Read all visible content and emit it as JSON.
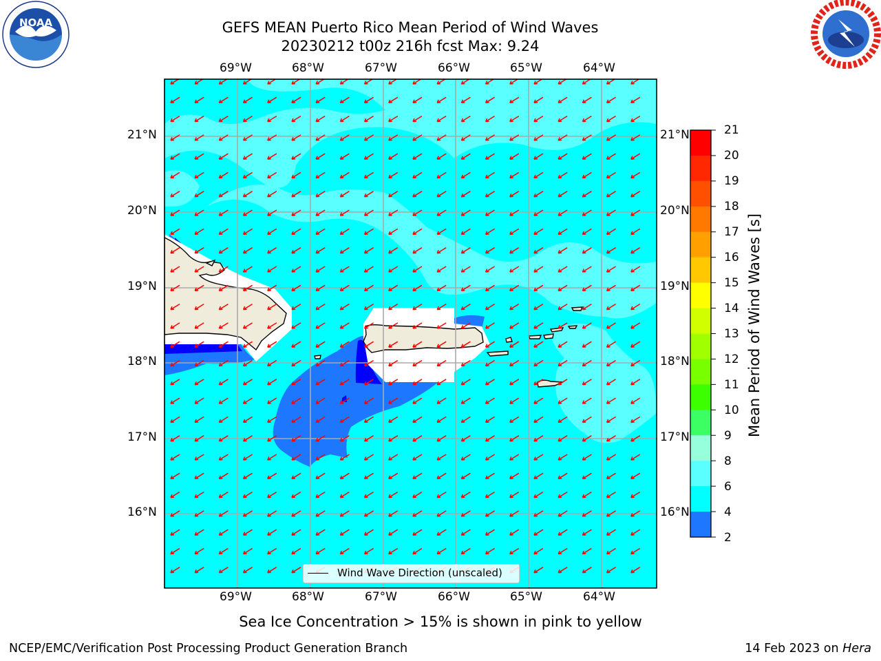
{
  "header": {
    "title_line1": "GEFS MEAN Puerto Rico Mean Period of Wind Waves",
    "title_line2": "20230212 t00z 216h fcst   Max: 9.24"
  },
  "logos": {
    "left": "NOAA",
    "left_ring_text": "NATIONAL OCEANIC AND ATMOSPHERIC ADMINISTRATION · U.S. DEPARTMENT OF COMMERCE",
    "right_ring_text": "NATIONAL WEATHER SERVICE"
  },
  "map": {
    "lon_ticks": [
      "69°W",
      "68°W",
      "67°W",
      "66°W",
      "65°W",
      "64°W"
    ],
    "lat_ticks": [
      "21°N",
      "20°N",
      "19°N",
      "18°N",
      "17°N",
      "16°N"
    ],
    "legend_label": "Wind Wave Direction (unscaled)",
    "colors": {
      "background_6_8": "#00ffff",
      "band_8_9": "#5affff",
      "band_4_6": "#1e78ff",
      "band_2_4": "#0000ff",
      "land": "#efecdc",
      "arrow": "#ff0000"
    }
  },
  "colorbar": {
    "title": "Mean Period of Wind Waves [s]",
    "labels": [
      "21",
      "20",
      "19",
      "18",
      "17",
      "16",
      "15",
      "14",
      "13",
      "12",
      "11",
      "10",
      "9",
      "8",
      "6",
      "4",
      "2"
    ],
    "colors": [
      "#ff0000",
      "#ff2800",
      "#ff5000",
      "#ff7800",
      "#ffa000",
      "#ffc800",
      "#ffff00",
      "#d2ff00",
      "#a0ff00",
      "#78ff00",
      "#3cff00",
      "#3cff64",
      "#96ffdc",
      "#5affff",
      "#00ffff",
      "#1e78ff",
      "#0000ff"
    ]
  },
  "note": "Sea Ice Concentration > 15% is shown in pink to yellow",
  "footer": {
    "left": "NCEP/EMC/Verification Post Processing Product Generation Branch",
    "right_prefix": "14 Feb 2023 on ",
    "right_machine": "Hera"
  }
}
